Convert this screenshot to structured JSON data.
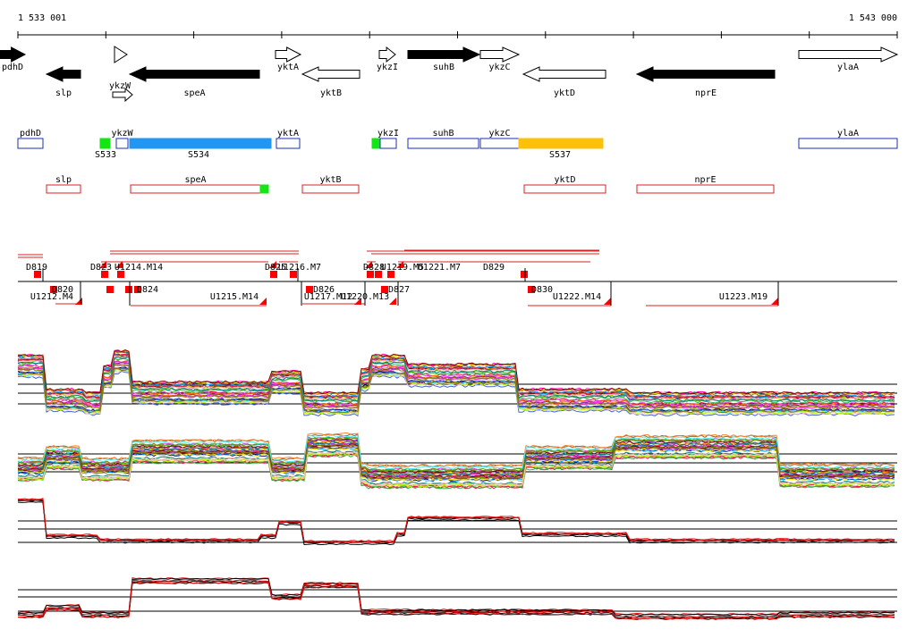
{
  "coordinate_range": {
    "start_label": "1 533 001",
    "end_label": "1 543 000"
  },
  "colors": {
    "gene_fill": "#000000",
    "gene_open": "#ffffff",
    "segment_forward": "#1f2fb8",
    "segment_reverse": "#d82020",
    "segment_cyan": "#2196f3",
    "segment_orange": "#ffc107",
    "segment_green": "#14e614",
    "marker_red": "#ff0000",
    "trace_black": "#000000",
    "trace_red": "#e01010"
  },
  "gene_arrows": [
    {
      "id": "pdhD",
      "label": "pdhD",
      "strand": "+",
      "style": "filled",
      "row": 1,
      "start": 0,
      "end": 28
    },
    {
      "id": "slp",
      "label": "slp",
      "strand": "-",
      "style": "filled",
      "row": 2,
      "start": 52,
      "end": 90
    },
    {
      "id": "ykzW",
      "label": "ykzW",
      "strand": "+",
      "style": "open",
      "row": "small",
      "start": 128,
      "end": 145
    },
    {
      "id": "speA",
      "label": "speA",
      "strand": "-",
      "style": "filled",
      "row": 2,
      "start": 145,
      "end": 290
    },
    {
      "id": "yktA",
      "label": "yktA",
      "strand": "+",
      "style": "open",
      "row": 1,
      "start": 308,
      "end": 336
    },
    {
      "id": "yktB",
      "label": "yktB",
      "strand": "-",
      "style": "open",
      "row": 2,
      "start": 338,
      "end": 402
    },
    {
      "id": "ykzI",
      "label": "ykzI",
      "strand": "+",
      "style": "open",
      "row": 1,
      "start": 424,
      "end": 442
    },
    {
      "id": "suhB",
      "label": "suhB",
      "strand": "+",
      "style": "filled",
      "row": 1,
      "start": 456,
      "end": 536
    },
    {
      "id": "ykzC",
      "label": "ykzC",
      "strand": "+",
      "style": "open",
      "row": 1,
      "start": 537,
      "end": 580
    },
    {
      "id": "yktD",
      "label": "yktD",
      "strand": "-",
      "style": "open",
      "row": 2,
      "start": 585,
      "end": 677
    },
    {
      "id": "nprE",
      "label": "nprE",
      "strand": "-",
      "style": "filled",
      "row": 2,
      "start": 712,
      "end": 866
    },
    {
      "id": "ylaA",
      "label": "ylaA",
      "strand": "+",
      "style": "open",
      "row": 1,
      "start": 893,
      "end": 1003
    }
  ],
  "forward_segments": [
    {
      "label": "pdhD",
      "start": 20,
      "end": 48,
      "fill": "none"
    },
    {
      "label": "",
      "start": 112,
      "end": 123,
      "fill": "green"
    },
    {
      "label": "ykzW",
      "start": 130,
      "end": 143,
      "fill": "none"
    },
    {
      "label": "",
      "start": 145,
      "end": 303,
      "fill": "cyan"
    },
    {
      "label": "yktA",
      "start": 309,
      "end": 335,
      "fill": "none"
    },
    {
      "label": "",
      "start": 416,
      "end": 425,
      "fill": "green"
    },
    {
      "label": "ykzI",
      "start": 425,
      "end": 443,
      "fill": "none"
    },
    {
      "label": "suhB",
      "start": 456,
      "end": 535,
      "fill": "none"
    },
    {
      "label": "ykzC",
      "start": 537,
      "end": 580,
      "fill": "none"
    },
    {
      "label": "",
      "start": 580,
      "end": 674,
      "fill": "orange"
    },
    {
      "label": "ylaA",
      "start": 893,
      "end": 1003,
      "fill": "none"
    }
  ],
  "forward_segment_ids": [
    {
      "label": "S533",
      "at": 118
    },
    {
      "label": "S534",
      "at": 222
    },
    {
      "label": "S537",
      "at": 626
    }
  ],
  "reverse_segments": [
    {
      "label": "slp",
      "start": 52,
      "end": 90,
      "fill": "none"
    },
    {
      "label": "speA",
      "start": 146,
      "end": 291,
      "fill": "none"
    },
    {
      "label": "",
      "start": 291,
      "end": 300,
      "fill": "green"
    },
    {
      "label": "yktB",
      "start": 338,
      "end": 401,
      "fill": "none"
    },
    {
      "label": "yktD",
      "start": 586,
      "end": 677,
      "fill": "none"
    },
    {
      "label": "nprE",
      "start": 712,
      "end": 865,
      "fill": "none"
    }
  ],
  "upper_features": [
    {
      "label": "D819",
      "at": 41
    },
    {
      "label": "D823",
      "at": 113
    },
    {
      "label": "U1214.M14",
      "at": 155
    },
    {
      "label": "U1216.M7",
      "at": 335
    },
    {
      "label": "D825",
      "at": 308
    },
    {
      "label": "D828",
      "at": 418
    },
    {
      "label": "U1219.M5",
      "at": 450
    },
    {
      "label": "U1221.M7",
      "at": 491
    },
    {
      "label": "D829",
      "at": 552
    }
  ],
  "lower_features": [
    {
      "label": "D820",
      "at": 70
    },
    {
      "label": "U1212.M4",
      "at": 58
    },
    {
      "label": "D824",
      "at": 165
    },
    {
      "label": "U1215.M14",
      "at": 262
    },
    {
      "label": "D826",
      "at": 362
    },
    {
      "label": "U1217.M12",
      "at": 367
    },
    {
      "label": "U1220.M13",
      "at": 408
    },
    {
      "label": "D827",
      "at": 446
    },
    {
      "label": "D830",
      "at": 606
    },
    {
      "label": "U1222.M14",
      "at": 645
    },
    {
      "label": "U1223.M19",
      "at": 831
    }
  ]
}
